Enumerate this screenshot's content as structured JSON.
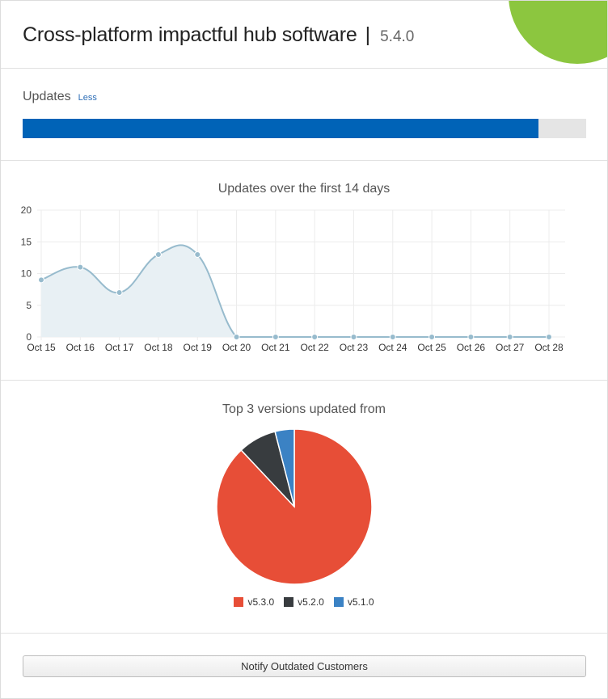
{
  "header": {
    "title": "Cross-platform impactful hub software",
    "separator": "|",
    "version": "5.4.0"
  },
  "updates": {
    "label": "Updates",
    "toggle_label": "Less",
    "progress_fraction": 0.915,
    "progress_color": "#0063b7"
  },
  "line_chart": {
    "title": "Updates over the first 14 days"
  },
  "pie_chart": {
    "title": "Top 3 versions updated from"
  },
  "footer": {
    "notify_button": "Notify Outdated Customers"
  },
  "chart_data": [
    {
      "type": "area",
      "title": "Updates over the first 14 days",
      "categories": [
        "Oct 15",
        "Oct 16",
        "Oct 17",
        "Oct 18",
        "Oct 19",
        "Oct 20",
        "Oct 21",
        "Oct 22",
        "Oct 23",
        "Oct 24",
        "Oct 25",
        "Oct 26",
        "Oct 27",
        "Oct 28"
      ],
      "values": [
        9,
        11,
        7,
        13,
        13,
        0,
        0,
        0,
        0,
        0,
        0,
        0,
        0,
        0
      ],
      "ylim": [
        0,
        20
      ],
      "yticks": [
        0,
        5,
        10,
        15,
        20
      ],
      "grid": true,
      "line_color": "#97bbcd",
      "fill_color": "#e8f0f4"
    },
    {
      "type": "pie",
      "title": "Top 3 versions updated from",
      "labels": [
        "v5.3.0",
        "v5.2.0",
        "v5.1.0"
      ],
      "values": [
        88,
        8,
        4
      ],
      "colors": [
        "#e74e37",
        "#383c3f",
        "#3b82c4"
      ],
      "legend": "bottom"
    }
  ]
}
